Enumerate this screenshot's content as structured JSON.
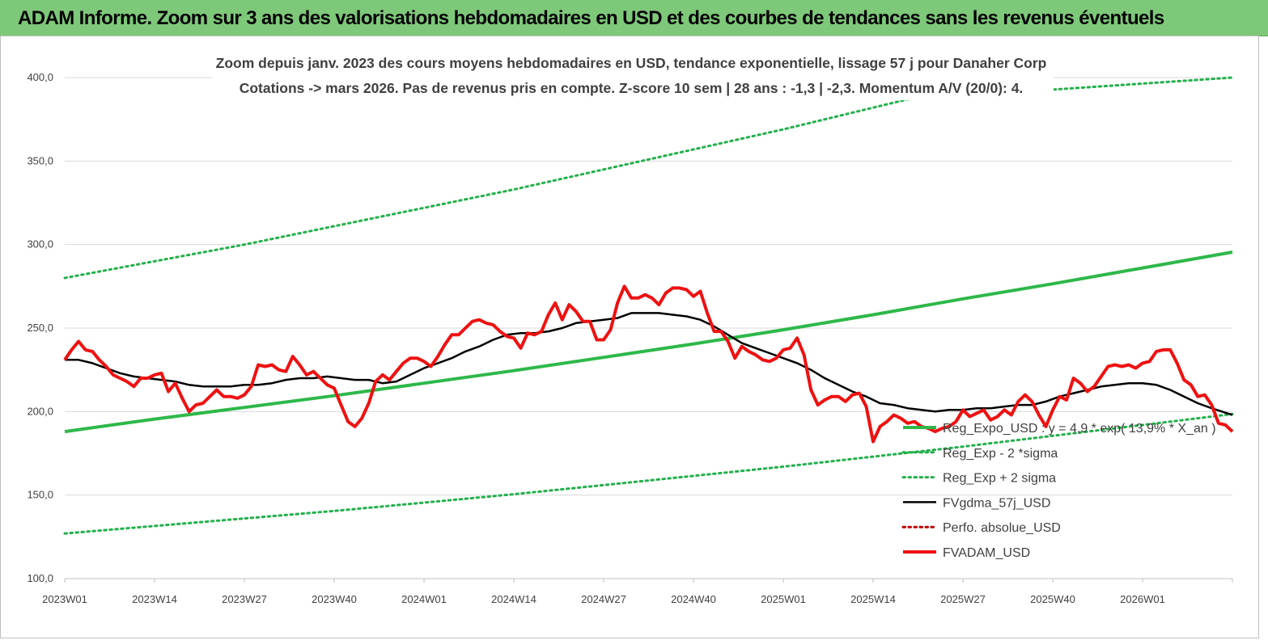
{
  "banner": {
    "title": "ADAM Informe. Zoom sur 3 ans des valorisations hebdomadaires en USD et des courbes de tendances sans les revenus éventuels"
  },
  "colors": {
    "banner_bg": "#7ec87a",
    "trend_green": "#2eb84a",
    "band_green": "#22b04a",
    "smooth_black": "#000000",
    "price_red": "#ee1111",
    "perf_red": "#c00000"
  },
  "chart_data": {
    "type": "line",
    "title_lines": [
      "Zoom depuis janv. 2023 des cours moyens hebdomadaires en USD, tendance exponentielle, lissage 57 j pour Danaher Corp",
      "Cotations -> mars 2026. Pas de revenus pris en  compte. Z-score 10 sem  | 28 ans : -1,3  | -2,3. Momentum A/V (20/0): 4."
    ],
    "x_tick_labels": [
      "2023W01",
      "2023W14",
      "2023W27",
      "2023W40",
      "2024W01",
      "2024W14",
      "2024W27",
      "2024W40",
      "2025W01",
      "2025W14",
      "2025W27",
      "2025W40",
      "2026W01"
    ],
    "y_tick_labels": [
      "100,0",
      "150,0",
      "200,0",
      "250,0",
      "300,0",
      "350,0",
      "400,0"
    ],
    "ylim": [
      100,
      400
    ],
    "x_range_weeks": [
      0,
      169
    ],
    "grid": true,
    "legend_position": "bottom-right",
    "series": [
      {
        "name": "Reg_Expo_USD : y = 4,9 * exp( 13,9% *  X_an )",
        "style": "solid-thick",
        "color": "#2eb84a",
        "x": [
          0,
          13,
          26,
          39,
          52,
          65,
          78,
          91,
          104,
          117,
          130,
          143,
          156,
          169
        ],
        "y": [
          188,
          195.5,
          202.5,
          209.5,
          217,
          224.5,
          232.5,
          240.5,
          249,
          258,
          267.5,
          276.5,
          286,
          295.5
        ]
      },
      {
        "name": "Reg_Exp - 2 *sigma",
        "style": "dotted",
        "color": "#22b04a",
        "x": [
          0,
          13,
          26,
          39,
          52,
          65,
          78,
          91,
          104,
          117,
          130,
          143,
          156,
          169
        ],
        "y": [
          127,
          131.5,
          136,
          140.5,
          145.5,
          150.5,
          156,
          161.5,
          167,
          173,
          179,
          185.5,
          192,
          198.5
        ]
      },
      {
        "name": "Reg_Exp + 2 sigma",
        "style": "dotted",
        "color": "#22b04a",
        "x": [
          0,
          13,
          26,
          39,
          52,
          65,
          78,
          91,
          104,
          117,
          122,
          169
        ],
        "y": [
          280,
          290,
          300,
          311,
          322,
          333,
          345,
          357,
          369,
          382,
          387,
          400
        ]
      },
      {
        "name": "FVgdma_57j_USD",
        "style": "solid",
        "color": "#000000",
        "x": [
          0,
          2,
          4,
          6,
          8,
          10,
          12,
          14,
          16,
          18,
          20,
          22,
          24,
          26,
          28,
          30,
          32,
          34,
          36,
          38,
          40,
          42,
          44,
          46,
          48,
          50,
          52,
          54,
          56,
          58,
          60,
          62,
          64,
          66,
          68,
          70,
          72,
          74,
          76,
          78,
          80,
          82,
          84,
          86,
          88,
          90,
          92,
          94,
          96,
          98,
          100,
          102,
          104,
          106,
          108,
          110,
          112,
          114,
          116,
          118,
          120,
          122,
          124,
          126,
          128,
          130,
          132,
          134,
          136,
          138,
          140,
          142,
          144,
          146,
          148,
          150,
          152,
          154,
          156,
          158,
          160,
          162,
          164,
          166,
          169
        ],
        "y": [
          231,
          231,
          229,
          226,
          223,
          221,
          220,
          219,
          218,
          216,
          215,
          215,
          215,
          216,
          216,
          217,
          219,
          220,
          220,
          221,
          220,
          219,
          219,
          217,
          218,
          222,
          226,
          229,
          232,
          236,
          239,
          243,
          246,
          247,
          247,
          248,
          250,
          253,
          254,
          255,
          256,
          259,
          259,
          259,
          258,
          257,
          255,
          251,
          246,
          241,
          238,
          235,
          232,
          229,
          225,
          220,
          216,
          212,
          209,
          205,
          204,
          202,
          201,
          200,
          201,
          201,
          202,
          202,
          203,
          204,
          204,
          206,
          209,
          211,
          213,
          215,
          216,
          217,
          217,
          216,
          213,
          209,
          205,
          202,
          198
        ]
      },
      {
        "name": "Perfo. absolue_USD",
        "style": "dotted",
        "color": "#c00000",
        "x": [],
        "y": []
      },
      {
        "name": "FVADAM_USD",
        "style": "solid-thick",
        "color": "#ee1111",
        "x": [
          0,
          1,
          2,
          3,
          4,
          5,
          6,
          7,
          8,
          9,
          10,
          11,
          12,
          13,
          14,
          15,
          16,
          17,
          18,
          19,
          20,
          21,
          22,
          23,
          24,
          25,
          26,
          27,
          28,
          29,
          30,
          31,
          32,
          33,
          34,
          35,
          36,
          37,
          38,
          39,
          40,
          41,
          42,
          43,
          44,
          45,
          46,
          47,
          48,
          49,
          50,
          51,
          52,
          53,
          54,
          55,
          56,
          57,
          58,
          59,
          60,
          61,
          62,
          63,
          64,
          65,
          66,
          67,
          68,
          69,
          70,
          71,
          72,
          73,
          74,
          75,
          76,
          77,
          78,
          79,
          80,
          81,
          82,
          83,
          84,
          85,
          86,
          87,
          88,
          89,
          90,
          91,
          92,
          93,
          94,
          95,
          96,
          97,
          98,
          99,
          100,
          101,
          102,
          103,
          104,
          105,
          106,
          107,
          108,
          109,
          110,
          111,
          112,
          113,
          114,
          115,
          116,
          117,
          118,
          119,
          120,
          121,
          122,
          123,
          124,
          125,
          126,
          127,
          128,
          129,
          130,
          131,
          132,
          133,
          134,
          135,
          136,
          137,
          138,
          139,
          140,
          141,
          142,
          143,
          144,
          145,
          146,
          147,
          148,
          149,
          150,
          151,
          152,
          153,
          154,
          155,
          156,
          157,
          158,
          159,
          160,
          161,
          162,
          163,
          164,
          165,
          166,
          167,
          168,
          169
        ],
        "y": [
          231,
          237,
          242,
          237,
          236,
          231,
          227,
          222,
          220,
          218,
          215,
          220,
          220,
          222,
          223,
          212,
          217,
          208,
          200,
          204,
          205,
          209,
          213,
          209,
          209,
          208,
          210,
          215,
          228,
          227,
          228,
          225,
          224,
          233,
          228,
          222,
          224,
          220,
          216,
          214,
          204,
          194,
          191,
          196,
          205,
          218,
          222,
          219,
          224,
          229,
          232,
          232,
          230,
          227,
          233,
          240,
          246,
          246,
          250,
          254,
          255,
          253,
          252,
          248,
          245,
          244,
          238,
          247,
          246,
          248,
          258,
          265,
          255,
          264,
          260,
          254,
          254,
          243,
          243,
          249,
          265,
          275,
          268,
          268,
          270,
          268,
          264,
          271,
          274,
          274,
          273,
          269,
          272,
          259,
          248,
          248,
          242,
          232,
          239,
          236,
          234,
          231,
          230,
          232,
          237,
          238,
          244,
          234,
          213,
          204,
          207,
          209,
          209,
          206,
          210,
          211,
          203,
          182,
          191,
          194,
          198,
          196,
          193,
          194,
          191,
          190,
          188,
          190,
          191,
          194,
          201,
          197,
          199,
          201,
          195,
          197,
          201,
          198,
          206,
          210,
          206,
          198,
          191,
          201,
          209,
          207,
          220,
          217,
          212,
          215,
          221,
          227,
          228,
          227,
          228,
          226,
          229,
          230,
          236,
          237,
          237,
          229,
          219,
          216,
          209,
          210,
          204,
          193,
          192,
          188
        ]
      }
    ]
  }
}
